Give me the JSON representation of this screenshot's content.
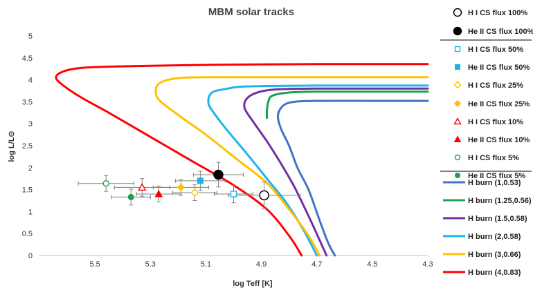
{
  "chart_data": {
    "type": "line",
    "title": "MBM solar tracks",
    "xlabel": "log Teff [K]",
    "ylabel": "log L/L⊙",
    "xlim": [
      5.7,
      4.3
    ],
    "ylim": [
      0,
      5
    ],
    "x_ticks": [
      "5.5",
      "5.3",
      "5.1",
      "4.9",
      "4.7",
      "4.5",
      "4.3"
    ],
    "y_ticks": [
      "0",
      "0.5",
      "1",
      "1.5",
      "2",
      "2.5",
      "3",
      "3.5",
      "4",
      "4.5",
      "5"
    ],
    "grid": false,
    "legend_position": "right",
    "series": [
      {
        "name": "H burn (1,0.53)",
        "color": "#4472c4",
        "points": [
          [
            4.3,
            3.52
          ],
          [
            4.5,
            3.52
          ],
          [
            4.7,
            3.52
          ],
          [
            4.78,
            3.5
          ],
          [
            4.82,
            3.42
          ],
          [
            4.84,
            3.2
          ],
          [
            4.83,
            2.9
          ],
          [
            4.8,
            2.5
          ],
          [
            4.77,
            2.0
          ],
          [
            4.73,
            1.5
          ],
          [
            4.69,
            0.8
          ],
          [
            4.66,
            0.3
          ],
          [
            4.635,
            0.0
          ]
        ]
      },
      {
        "name": "H burn (1.25,0.56)",
        "color": "#1aa34a",
        "points": [
          [
            4.3,
            3.73
          ],
          [
            4.5,
            3.73
          ],
          [
            4.7,
            3.73
          ],
          [
            4.8,
            3.71
          ],
          [
            4.86,
            3.64
          ],
          [
            4.875,
            3.5
          ],
          [
            4.88,
            3.3
          ],
          [
            4.88,
            3.13
          ]
        ]
      },
      {
        "name": "H burn (1.5,0.58)",
        "color": "#7030a0",
        "points": [
          [
            4.3,
            3.8
          ],
          [
            4.5,
            3.8
          ],
          [
            4.7,
            3.8
          ],
          [
            4.85,
            3.78
          ],
          [
            4.92,
            3.7
          ],
          [
            4.955,
            3.55
          ],
          [
            4.96,
            3.35
          ],
          [
            4.93,
            3.05
          ],
          [
            4.88,
            2.6
          ],
          [
            4.83,
            2.1
          ],
          [
            4.78,
            1.55
          ],
          [
            4.73,
            0.9
          ],
          [
            4.69,
            0.35
          ],
          [
            4.665,
            0.0
          ]
        ]
      },
      {
        "name": "H burn (2,0.58)",
        "color": "#1eb4ea",
        "points": [
          [
            4.3,
            3.87
          ],
          [
            4.5,
            3.87
          ],
          [
            4.7,
            3.87
          ],
          [
            4.95,
            3.85
          ],
          [
            5.03,
            3.79
          ],
          [
            5.08,
            3.7
          ],
          [
            5.09,
            3.45
          ],
          [
            5.06,
            3.15
          ],
          [
            5.01,
            2.75
          ],
          [
            4.95,
            2.3
          ],
          [
            4.88,
            1.75
          ],
          [
            4.81,
            1.2
          ],
          [
            4.75,
            0.6
          ],
          [
            4.7,
            0.0
          ]
        ]
      },
      {
        "name": "H burn (3,0.66)",
        "color": "#ffc000",
        "points": [
          [
            4.3,
            4.06
          ],
          [
            4.5,
            4.06
          ],
          [
            4.7,
            4.06
          ],
          [
            4.95,
            4.06
          ],
          [
            5.1,
            4.06
          ],
          [
            5.2,
            4.04
          ],
          [
            5.26,
            3.95
          ],
          [
            5.28,
            3.8
          ],
          [
            5.27,
            3.55
          ],
          [
            5.2,
            3.2
          ],
          [
            5.1,
            2.75
          ],
          [
            4.99,
            2.2
          ],
          [
            4.88,
            1.65
          ],
          [
            4.8,
            1.05
          ],
          [
            4.73,
            0.45
          ],
          [
            4.69,
            0.0
          ]
        ]
      },
      {
        "name": "H burn (4,0.83)",
        "color": "#ff0000",
        "points": [
          [
            4.3,
            4.36
          ],
          [
            4.5,
            4.36
          ],
          [
            4.7,
            4.36
          ],
          [
            4.9,
            4.35
          ],
          [
            5.1,
            4.34
          ],
          [
            5.3,
            4.32
          ],
          [
            5.45,
            4.3
          ],
          [
            5.55,
            4.27
          ],
          [
            5.61,
            4.2
          ],
          [
            5.64,
            4.07
          ],
          [
            5.62,
            3.9
          ],
          [
            5.55,
            3.6
          ],
          [
            5.45,
            3.25
          ],
          [
            5.3,
            2.7
          ],
          [
            5.15,
            2.15
          ],
          [
            5.0,
            1.6
          ],
          [
            4.88,
            1.05
          ],
          [
            4.8,
            0.45
          ],
          [
            4.755,
            0.0
          ]
        ]
      }
    ],
    "markers": [
      {
        "name": "H I CS flux 100%",
        "color": "#000000",
        "shape": "circle",
        "filled": false,
        "size": 13,
        "x": 4.89,
        "y": 1.37,
        "xerr": 0.13,
        "yerr": 0.3
      },
      {
        "name": "He II CS flux 100%",
        "color": "#000000",
        "shape": "circle",
        "filled": true,
        "size": 13,
        "x": 5.055,
        "y": 1.84,
        "xerr": 0.09,
        "yerr": 0.28
      },
      {
        "name": "H I CS flux 50%",
        "color": "#1eb4ea",
        "shape": "square",
        "filled": false,
        "size": 8,
        "x": 5.0,
        "y": 1.4,
        "xerr": 0.07,
        "yerr": 0.2
      },
      {
        "name": "He II CS flux 50%",
        "color": "#1eb4ea",
        "shape": "square",
        "filled": true,
        "size": 8,
        "x": 5.12,
        "y": 1.7,
        "xerr": 0.09,
        "yerr": 0.22
      },
      {
        "name": "H I CS flux 25%",
        "color": "#ffc000",
        "shape": "diamond",
        "filled": false,
        "size": 8,
        "x": 5.14,
        "y": 1.43,
        "xerr": 0.08,
        "yerr": 0.18
      },
      {
        "name": "He II CS flux 25%",
        "color": "#ffc000",
        "shape": "diamond",
        "filled": true,
        "size": 8,
        "x": 5.19,
        "y": 1.55,
        "xerr": 0.1,
        "yerr": 0.18
      },
      {
        "name": "H I CS flux 10%",
        "color": "#ff0000",
        "shape": "triangle",
        "filled": false,
        "size": 8,
        "x": 5.33,
        "y": 1.55,
        "xerr": 0.1,
        "yerr": 0.2
      },
      {
        "name": "He II CS flux 10%",
        "color": "#ff0000",
        "shape": "triangle",
        "filled": true,
        "size": 8,
        "x": 5.27,
        "y": 1.4,
        "xerr": 0.08,
        "yerr": 0.18
      },
      {
        "name": "H I CS flux 5%",
        "color": "#1aa34a",
        "shape": "circle",
        "filled": false,
        "size": 8,
        "x": 5.46,
        "y": 1.64,
        "xerr": 0.1,
        "yerr": 0.18
      },
      {
        "name": "He II CS flux 5%",
        "color": "#1aa34a",
        "shape": "circle",
        "filled": true,
        "size": 8,
        "x": 5.37,
        "y": 1.33,
        "xerr": 0.07,
        "yerr": 0.18
      }
    ]
  }
}
